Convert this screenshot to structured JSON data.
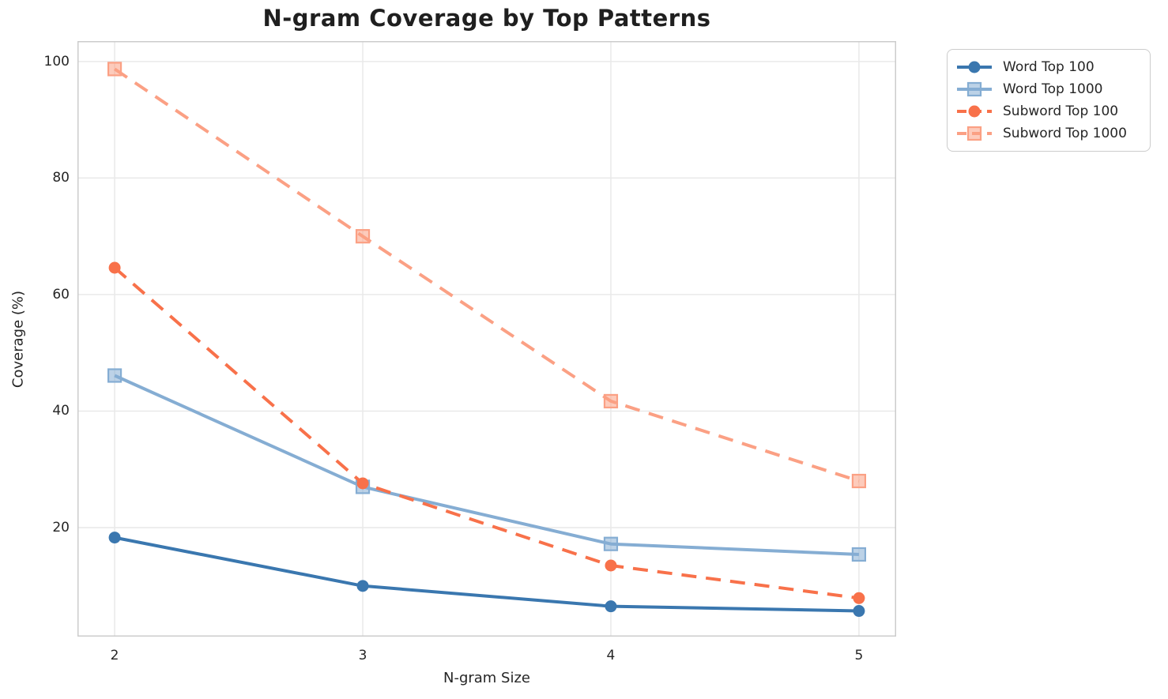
{
  "chart_data": {
    "type": "line",
    "title": "N-gram Coverage by Top Patterns",
    "xlabel": "N-gram Size",
    "ylabel": "Coverage (%)",
    "x": [
      2,
      3,
      4,
      5
    ],
    "xticks": [
      2,
      3,
      4,
      5
    ],
    "yticks": [
      20,
      40,
      60,
      80,
      100
    ],
    "xlim": [
      1.85,
      5.15
    ],
    "ylim": [
      1.3,
      103.5
    ],
    "grid": true,
    "legend_position": "outside-upper-right",
    "series": [
      {
        "name": "Word Top 100",
        "values": [
          18.3,
          10.0,
          6.5,
          5.7
        ],
        "color": "#3a77af",
        "marker": "circle",
        "linestyle": "solid"
      },
      {
        "name": "Word Top 1000",
        "values": [
          46.1,
          27.0,
          17.2,
          15.4
        ],
        "color": "#85add3",
        "marker": "square",
        "linestyle": "solid"
      },
      {
        "name": "Subword Top 100",
        "values": [
          64.6,
          27.6,
          13.5,
          7.9
        ],
        "color": "#f8714a",
        "marker": "circle",
        "linestyle": "dashed"
      },
      {
        "name": "Subword Top 1000",
        "values": [
          98.7,
          70.0,
          41.7,
          28.0
        ],
        "color": "#fba084",
        "marker": "square",
        "linestyle": "dashed"
      }
    ]
  },
  "colors": {
    "background": "#ffffff",
    "grid": "#e9e9e9",
    "spine": "#cccccc",
    "text": "#262626",
    "title": "#1f1f1f"
  }
}
